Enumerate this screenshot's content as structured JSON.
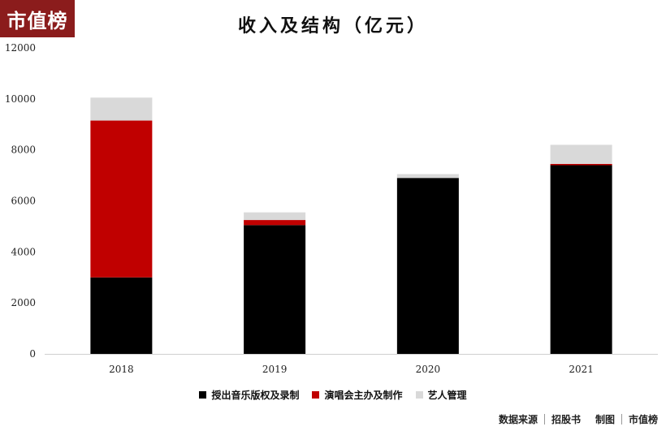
{
  "logo": {
    "text": "市值榜"
  },
  "source": {
    "data_source": "数据来源",
    "source_name": "招股书",
    "made_by": "制图",
    "maker": "市值榜"
  },
  "chart_data": {
    "type": "bar",
    "stacked": true,
    "title": "收入及结构（亿元）",
    "xlabel": "",
    "ylabel": "",
    "categories": [
      "2018",
      "2019",
      "2020",
      "2021"
    ],
    "ylim": [
      0,
      12000
    ],
    "yticks": [
      0,
      2000,
      4000,
      6000,
      8000,
      10000,
      12000
    ],
    "grid": false,
    "legend_position": "bottom",
    "series": [
      {
        "name": "授出音乐版权及录制",
        "color": "#000000",
        "values": [
          3000,
          5050,
          6900,
          7400
        ]
      },
      {
        "name": "演唱会主办及制作",
        "color": "#c00000",
        "values": [
          6150,
          200,
          0,
          50
        ]
      },
      {
        "name": "艺人管理",
        "color": "#d9d9d9",
        "values": [
          900,
          300,
          150,
          750
        ]
      }
    ]
  }
}
